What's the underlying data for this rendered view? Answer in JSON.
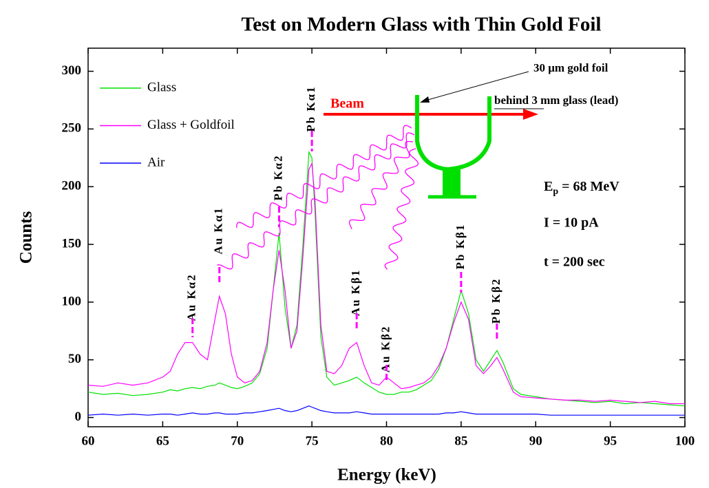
{
  "chart_data": {
    "type": "line",
    "title": "Test on Modern Glass with Thin Gold Foil",
    "x_label": "Energy (keV)",
    "y_label": "Counts",
    "xlim": [
      60,
      100
    ],
    "ylim": [
      -8,
      320
    ],
    "xticks": [
      60,
      65,
      70,
      75,
      80,
      85,
      90,
      95,
      100
    ],
    "yticks": [
      0,
      50,
      100,
      150,
      200,
      250,
      300
    ],
    "legend": "top-left",
    "x": [
      60,
      61,
      62,
      63,
      64,
      65,
      65.5,
      66,
      66.5,
      67,
      67.5,
      68,
      68.5,
      68.8,
      69.2,
      69.6,
      70,
      70.5,
      71,
      71.5,
      72,
      72.4,
      72.8,
      73.2,
      73.6,
      74,
      74.4,
      74.8,
      75,
      75.2,
      75.6,
      76,
      76.5,
      77,
      77.5,
      78,
      78.5,
      79,
      79.5,
      80,
      80.5,
      81,
      81.5,
      82,
      82.5,
      83,
      83.5,
      84,
      84.5,
      85,
      85.5,
      86,
      86.5,
      87,
      87.4,
      87.8,
      88.5,
      89,
      90,
      91,
      92,
      93,
      94,
      95,
      96,
      97,
      98,
      99,
      100
    ],
    "series": [
      {
        "name": "Glass",
        "color": "#00e000",
        "values": [
          22,
          20,
          21,
          19,
          20,
          22,
          24,
          23,
          25,
          26,
          25,
          27,
          28,
          30,
          28,
          26,
          25,
          27,
          30,
          38,
          60,
          110,
          160,
          95,
          60,
          80,
          150,
          230,
          225,
          180,
          70,
          35,
          28,
          30,
          32,
          35,
          30,
          26,
          22,
          20,
          20,
          22,
          22,
          24,
          28,
          32,
          42,
          60,
          85,
          110,
          90,
          50,
          40,
          50,
          58,
          48,
          25,
          20,
          18,
          16,
          15,
          14,
          13,
          14,
          12,
          13,
          12,
          11,
          10
        ]
      },
      {
        "name": "Glass + Goldfoil",
        "color": "#ff00ff",
        "values": [
          28,
          27,
          30,
          28,
          30,
          35,
          40,
          55,
          65,
          65,
          55,
          50,
          85,
          105,
          90,
          55,
          35,
          30,
          32,
          40,
          65,
          110,
          145,
          110,
          60,
          75,
          140,
          215,
          220,
          190,
          80,
          40,
          38,
          45,
          60,
          65,
          45,
          30,
          28,
          35,
          30,
          25,
          26,
          28,
          30,
          35,
          45,
          60,
          82,
          100,
          85,
          45,
          38,
          45,
          52,
          42,
          22,
          18,
          17,
          16,
          15,
          15,
          14,
          15,
          14,
          13,
          14,
          12,
          12
        ]
      },
      {
        "name": "Air",
        "color": "#0000ff",
        "values": [
          2,
          3,
          2,
          3,
          2,
          3,
          3,
          2,
          3,
          4,
          3,
          3,
          4,
          4,
          3,
          3,
          3,
          4,
          4,
          5,
          6,
          7,
          8,
          6,
          5,
          6,
          8,
          10,
          9,
          8,
          6,
          5,
          4,
          4,
          4,
          5,
          4,
          3,
          3,
          3,
          3,
          3,
          3,
          3,
          3,
          3,
          3,
          4,
          4,
          5,
          4,
          3,
          3,
          3,
          3,
          3,
          3,
          3,
          3,
          2,
          2,
          2,
          2,
          2,
          2,
          2,
          2,
          2,
          2
        ]
      }
    ],
    "peak_labels": [
      {
        "text": "Au Kα2",
        "x": 67
      },
      {
        "text": "Au Kα1",
        "x": 68.8
      },
      {
        "text": "Pb Kα2",
        "x": 72.8
      },
      {
        "text": "Pb Kα1",
        "x": 75
      },
      {
        "text": "Au Kβ1",
        "x": 78
      },
      {
        "text": "Au Kβ2",
        "x": 80
      },
      {
        "text": "Pb Kβ1",
        "x": 85
      },
      {
        "text": "Pb Kβ2",
        "x": 87.4
      }
    ],
    "annotations": {
      "beam": "Beam",
      "foil": "30 μm gold foil",
      "behind": "behind",
      "behind_rest": " 3 mm glass (lead)",
      "energy_symbol": "E",
      "energy_subscript": "p",
      "energy_text": " = 68 MeV",
      "current": "I = 10 pA",
      "time": "t = 200 sec"
    }
  }
}
